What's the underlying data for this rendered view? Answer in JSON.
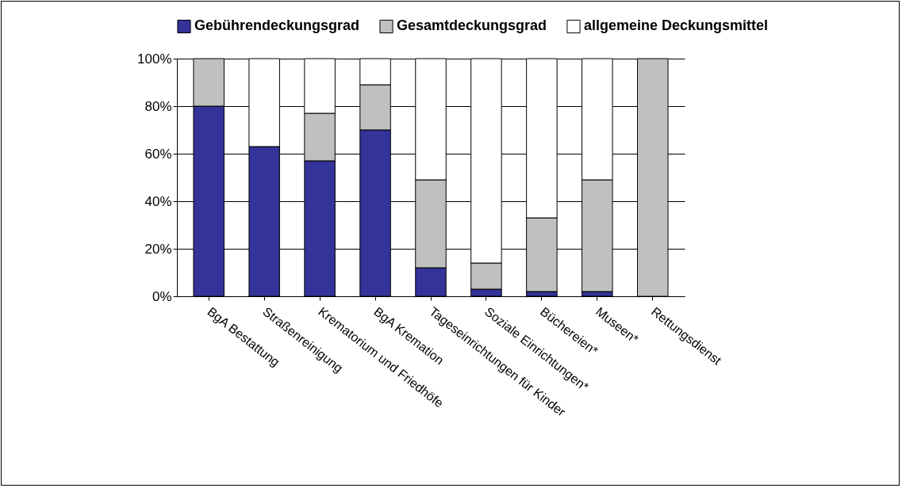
{
  "chart_data": {
    "type": "bar",
    "stacked": true,
    "categories": [
      "BgA Bestattung",
      "Straßenreinigung",
      "Krematorium und Friedhöfe",
      "BgA Kremation",
      "Tageseinrichtungen für Kinder",
      "Soziale Einrichtungen*",
      "Büchereien*",
      "Museen*",
      "Rettungsdienst"
    ],
    "series": [
      {
        "name": "Gebührendeckungsgrad",
        "color": "#333399",
        "values": [
          80,
          63,
          57,
          70,
          12,
          3,
          2,
          2,
          0
        ]
      },
      {
        "name": "Gesamtdeckungsgrad",
        "color": "#c0c0c0",
        "values": [
          20,
          0,
          20,
          19,
          37,
          11,
          31,
          47,
          100
        ]
      },
      {
        "name": "allgemeine Deckungsmittel",
        "color": "#ffffff",
        "values": [
          0,
          37,
          23,
          11,
          51,
          86,
          67,
          51,
          0
        ]
      }
    ],
    "ylim": [
      0,
      100
    ],
    "yticks": [
      {
        "value": 0,
        "label": "0%"
      },
      {
        "value": 20,
        "label": "20%"
      },
      {
        "value": 40,
        "label": "40%"
      },
      {
        "value": 60,
        "label": "60%"
      },
      {
        "value": 80,
        "label": "80%"
      },
      {
        "value": 100,
        "label": "100%"
      }
    ],
    "grid": "y",
    "legend": "top"
  }
}
